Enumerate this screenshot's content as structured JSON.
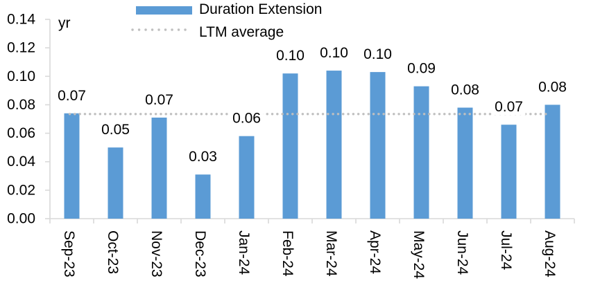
{
  "chart_data": {
    "type": "bar",
    "title": "",
    "unit_label": "yr",
    "categories": [
      "Sep-23",
      "Oct-23",
      "Nov-23",
      "Dec-23",
      "Jan-24",
      "Feb-24",
      "Mar-24",
      "Apr-24",
      "May-24",
      "Jun-24",
      "Jul-24",
      "Aug-24"
    ],
    "series": [
      {
        "name": "Duration Extension",
        "color": "#5B9BD5",
        "values": [
          0.074,
          0.05,
          0.071,
          0.031,
          0.058,
          0.102,
          0.104,
          0.103,
          0.093,
          0.078,
          0.066,
          0.08
        ],
        "data_labels": [
          "0.07",
          "0.05",
          "0.07",
          "0.03",
          "0.06",
          "0.10",
          "0.10",
          "0.10",
          "0.09",
          "0.08",
          "0.07",
          "0.08"
        ]
      }
    ],
    "ltm_average": {
      "name": "LTM average",
      "value": 0.0735,
      "color": "#BFBFBF",
      "style": "dotted"
    },
    "ylim": [
      0,
      0.14
    ],
    "ytick_step": 0.02,
    "y_tick_labels": [
      "0.00",
      "0.02",
      "0.04",
      "0.06",
      "0.08",
      "0.10",
      "0.12",
      "0.14"
    ],
    "axis_color": "#D9D9D9",
    "text_color": "#000000",
    "legend_position": "top",
    "grid": false
  }
}
